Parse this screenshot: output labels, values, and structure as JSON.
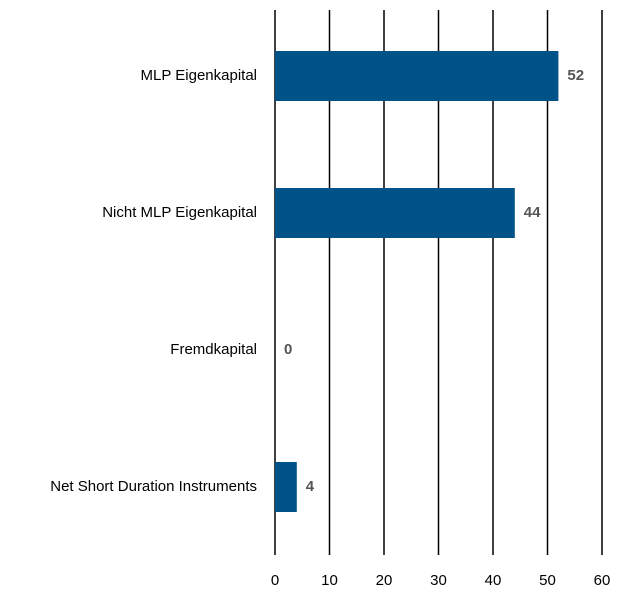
{
  "chart_data": {
    "type": "bar",
    "orientation": "horizontal",
    "categories": [
      "MLP Eigenkapital",
      "Nicht MLP Eigenkapital",
      "Fremdkapital",
      "Net Short Duration Instruments"
    ],
    "values": [
      52,
      44,
      0,
      4
    ],
    "color": "#005288",
    "xlim": [
      0,
      60
    ],
    "xticks": [
      0,
      10,
      20,
      30,
      40,
      50,
      60
    ],
    "grid": true
  }
}
